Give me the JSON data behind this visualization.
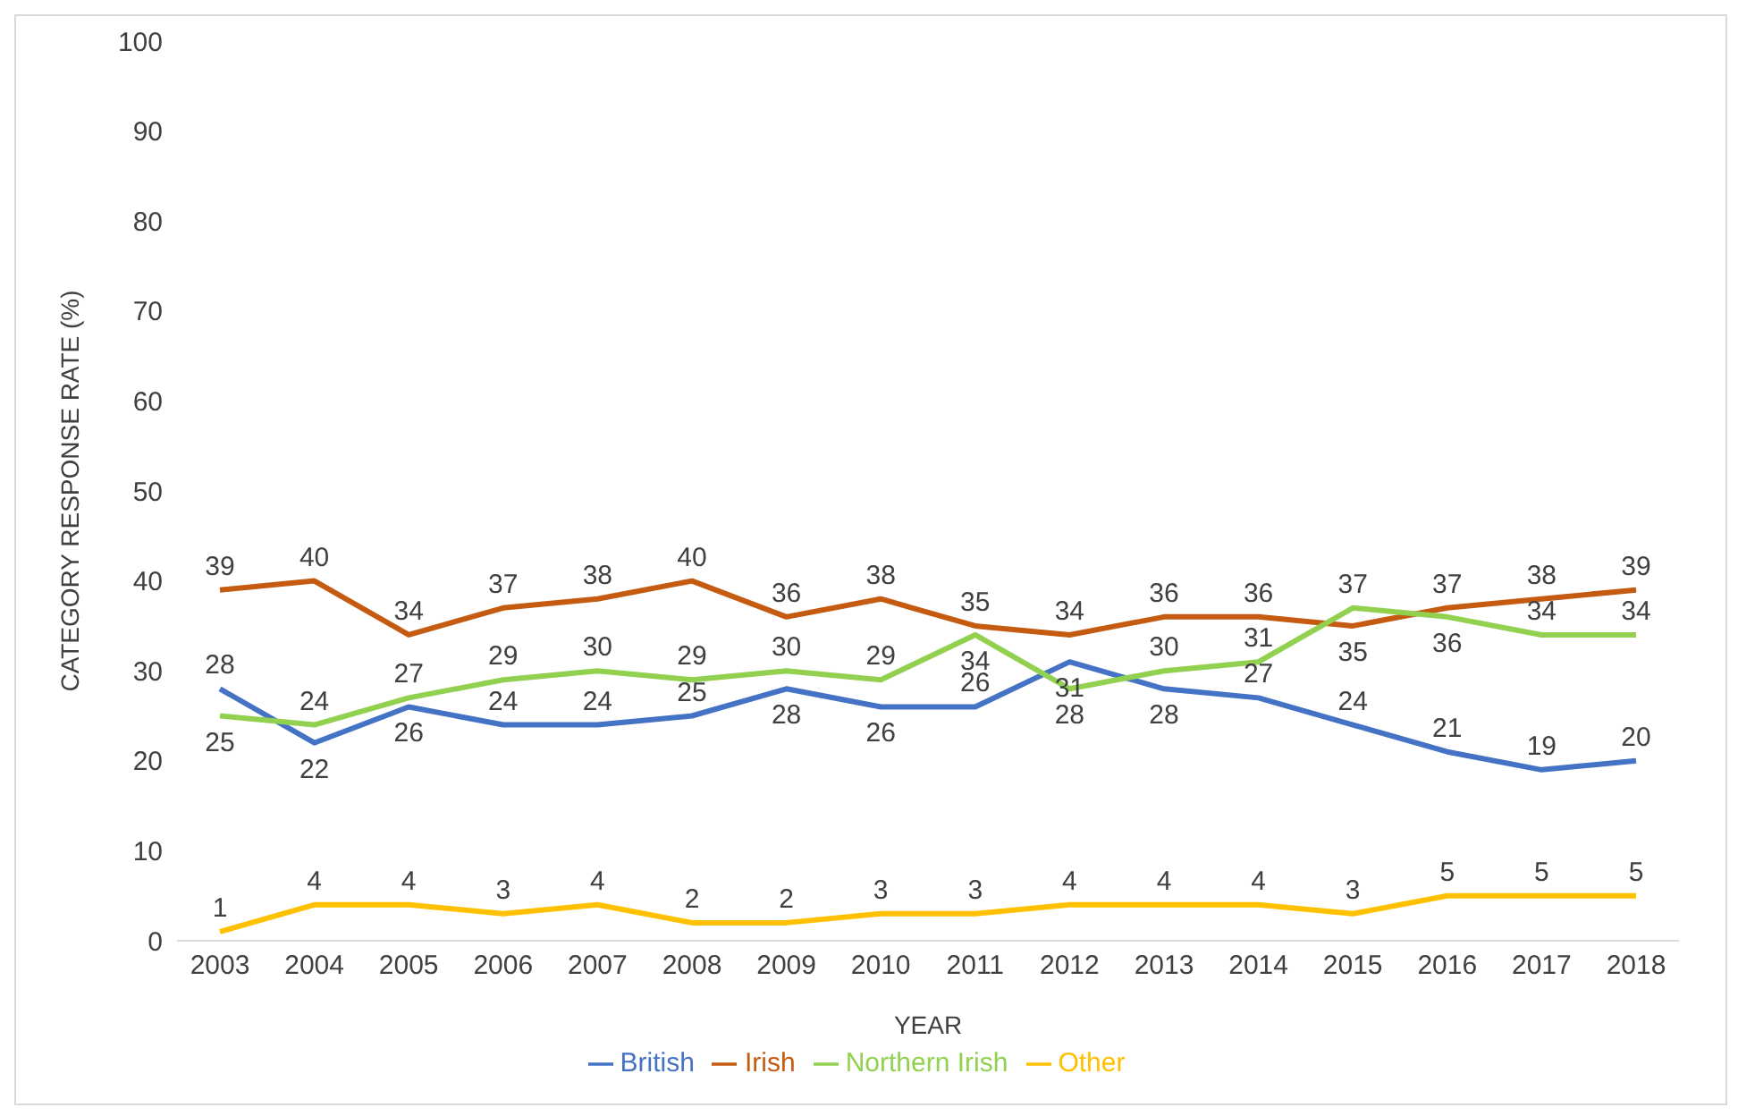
{
  "chart_data": {
    "type": "line",
    "xlabel": "YEAR",
    "ylabel": "CATEGORY RESPONSE RATE (%)",
    "categories": [
      "2003",
      "2004",
      "2005",
      "2006",
      "2007",
      "2008",
      "2009",
      "2010",
      "2011",
      "2012",
      "2013",
      "2014",
      "2015",
      "2016",
      "2017",
      "2018"
    ],
    "series": [
      {
        "name": "British",
        "color": "#4472c4",
        "values": [
          28,
          22,
          26,
          24,
          24,
          25,
          28,
          26,
          26,
          31,
          28,
          27,
          24,
          21,
          19,
          20
        ]
      },
      {
        "name": "Irish",
        "color": "#c55a11",
        "values": [
          39,
          40,
          34,
          37,
          38,
          40,
          36,
          38,
          35,
          34,
          36,
          36,
          35,
          37,
          38,
          39
        ]
      },
      {
        "name": "Northern Irish",
        "color": "#92d050",
        "values": [
          25,
          24,
          27,
          29,
          30,
          29,
          30,
          29,
          34,
          28,
          30,
          31,
          37,
          36,
          34,
          34
        ]
      },
      {
        "name": "Other",
        "color": "#ffc000",
        "values": [
          1,
          4,
          4,
          3,
          4,
          2,
          2,
          3,
          3,
          4,
          4,
          4,
          3,
          5,
          5,
          5
        ]
      }
    ],
    "ylim": [
      0,
      100
    ],
    "yticks": [
      0,
      10,
      20,
      30,
      40,
      50,
      60,
      70,
      80,
      90,
      100
    ],
    "legend": "bottom",
    "marker": "none",
    "line_style": "solid",
    "data_labels": true
  }
}
